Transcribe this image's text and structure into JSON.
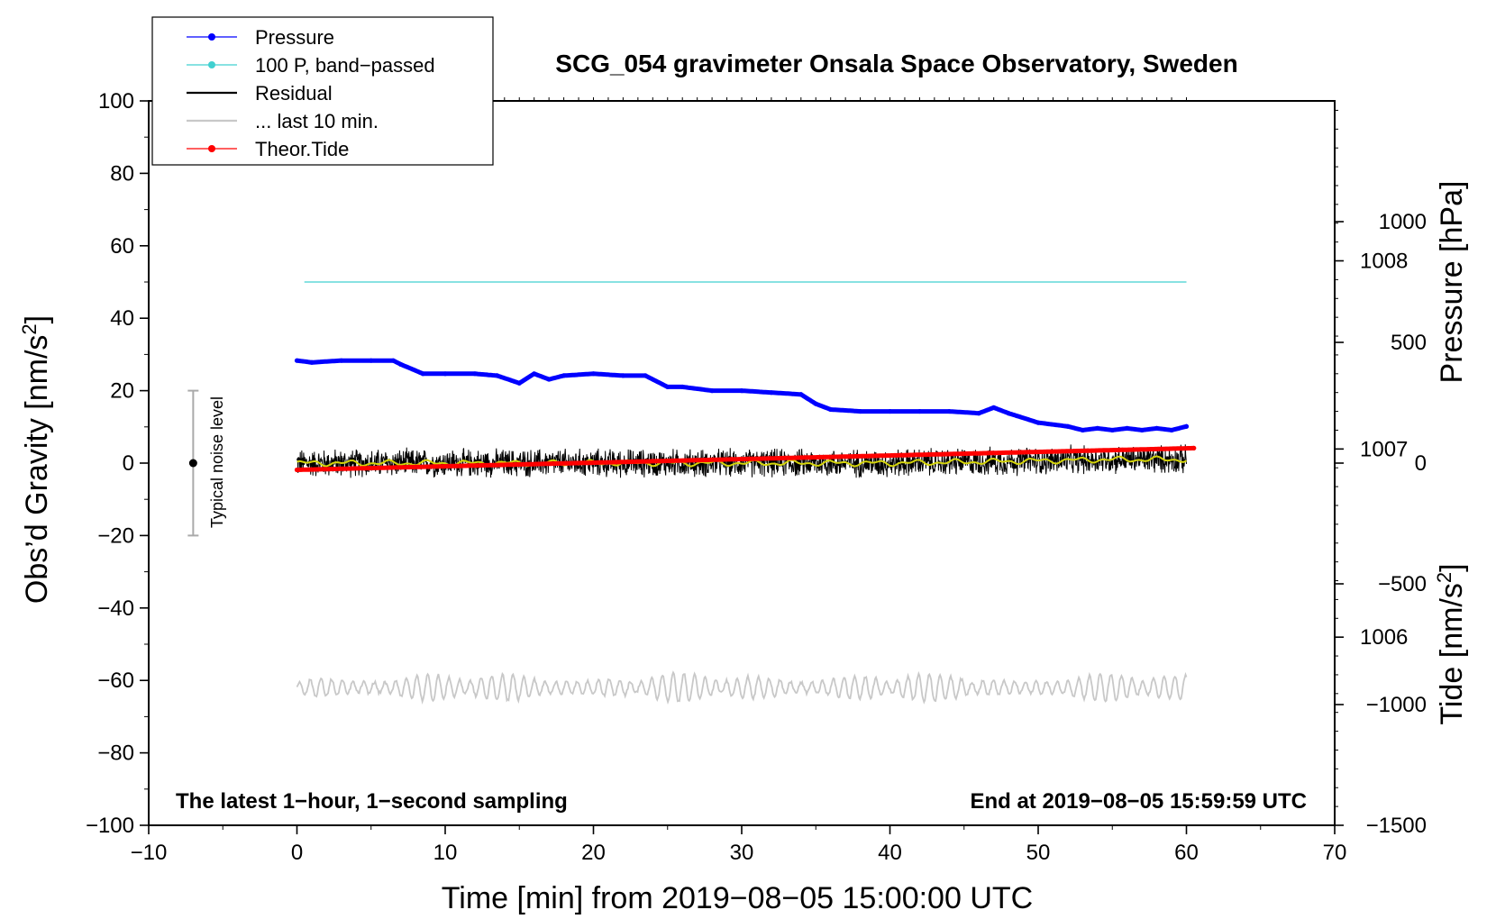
{
  "chart_data": {
    "type": "line",
    "title": "SCG_054 gravimeter Onsala Space Observatory, Sweden",
    "xlabel": "Time [min] from 2019−08−05 15:00:00 UTC",
    "ylabel": "Obs’d Gravity [nm/s",
    "ylabel_sup": "2",
    "ylabel_end": "]",
    "right_pressure_label": "Pressure [hPa]",
    "right_tide_label": "Tide [nm/s",
    "right_tide_sup": "2",
    "right_tide_end": "]",
    "note_left": "The latest 1−hour, 1−second sampling",
    "note_right": "End at 2019−08−05 15:59:59 UTC",
    "noise_label": "Typical noise level",
    "xlim": [
      -10,
      70
    ],
    "ylim": [
      -100,
      100
    ],
    "pressure_ylim": [
      1005.0,
      1008.85
    ],
    "tide_ylim": [
      -1500,
      1500
    ],
    "x_ticks": [
      {
        "v": -10,
        "t": "−10"
      },
      {
        "v": 0,
        "t": "0"
      },
      {
        "v": 10,
        "t": "10"
      },
      {
        "v": 20,
        "t": "20"
      },
      {
        "v": 30,
        "t": "30"
      },
      {
        "v": 40,
        "t": "40"
      },
      {
        "v": 50,
        "t": "50"
      },
      {
        "v": 60,
        "t": "60"
      },
      {
        "v": 70,
        "t": "70"
      }
    ],
    "y_ticks": [
      {
        "v": 100,
        "t": "100"
      },
      {
        "v": 80,
        "t": "80"
      },
      {
        "v": 60,
        "t": "60"
      },
      {
        "v": 40,
        "t": "40"
      },
      {
        "v": 20,
        "t": "20"
      },
      {
        "v": 0,
        "t": "0"
      },
      {
        "v": -20,
        "t": "−20"
      },
      {
        "v": -40,
        "t": "−40"
      },
      {
        "v": -60,
        "t": "−60"
      },
      {
        "v": -80,
        "t": "−80"
      },
      {
        "v": -100,
        "t": "−100"
      }
    ],
    "pressure_ticks": [
      {
        "v": 1008,
        "t": "1008"
      },
      {
        "v": 1007,
        "t": "1007"
      },
      {
        "v": 1006,
        "t": "1006"
      }
    ],
    "tide_ticks": [
      {
        "v": 1000,
        "t": "1000"
      },
      {
        "v": 500,
        "t": "500"
      },
      {
        "v": 0,
        "t": "0"
      },
      {
        "v": -500,
        "t": "−500"
      },
      {
        "v": -1000,
        "t": "−1000"
      },
      {
        "v": -1500,
        "t": "−1500"
      }
    ],
    "noise_bar": {
      "x": -7,
      "low": -20,
      "high": 20,
      "center": 0
    },
    "series": [
      {
        "name": "Pressure",
        "color": "#0000ff",
        "axis": "pressure",
        "style": "line-dots",
        "x": [
          0,
          1,
          3,
          5,
          6.5,
          7,
          8.5,
          10,
          12,
          13.5,
          15,
          16,
          17,
          18,
          20,
          22,
          23.5,
          25,
          26,
          28,
          30,
          32,
          34,
          35,
          36,
          38,
          40,
          42,
          44,
          46,
          47,
          48,
          50,
          52,
          53,
          54,
          55,
          56,
          57,
          58,
          59,
          60
        ],
        "values": [
          1007.47,
          1007.46,
          1007.47,
          1007.47,
          1007.47,
          1007.45,
          1007.4,
          1007.4,
          1007.4,
          1007.39,
          1007.35,
          1007.4,
          1007.37,
          1007.39,
          1007.4,
          1007.39,
          1007.39,
          1007.33,
          1007.33,
          1007.31,
          1007.31,
          1007.3,
          1007.29,
          1007.24,
          1007.21,
          1007.2,
          1007.2,
          1007.2,
          1007.2,
          1007.19,
          1007.22,
          1007.19,
          1007.14,
          1007.12,
          1007.1,
          1007.11,
          1007.1,
          1007.11,
          1007.1,
          1007.11,
          1007.1,
          1007.12
        ]
      },
      {
        "name": "100 P, band−passed",
        "color": "#40d0d0",
        "axis": "gravity",
        "style": "line",
        "x": [
          0.5,
          60
        ],
        "values": [
          50,
          50
        ]
      },
      {
        "name": "Residual",
        "color": "#000000",
        "axis": "gravity",
        "style": "noise",
        "x": [
          0,
          10,
          20,
          30,
          40,
          48,
          55,
          60
        ],
        "values": [
          0,
          0,
          0,
          0,
          0,
          0.5,
          1.0,
          1.0
        ],
        "noise_amplitude": 4.5
      },
      {
        "name": "... last 10 min.",
        "color": "#c8c8c8",
        "axis": "gravity",
        "style": "oscillation",
        "x": [
          0,
          60
        ],
        "values": [
          -62,
          -62
        ],
        "oscillation_amplitude": 4
      },
      {
        "name": "Theor.Tide",
        "color": "#ff0000",
        "axis": "tide",
        "style": "line-dots",
        "x": [
          0,
          60.5
        ],
        "values": [
          -28,
          62
        ]
      }
    ],
    "smoothed_residual_color": "#d4d40a",
    "legend": [
      {
        "label": "Pressure",
        "color": "#0000ff",
        "marker": true
      },
      {
        "label": "100 P, band−passed",
        "color": "#40d0d0",
        "marker": true
      },
      {
        "label": "Residual",
        "color": "#000000",
        "marker": false
      },
      {
        "label": "... last 10 min.",
        "color": "#c8c8c8",
        "marker": false
      },
      {
        "label": "Theor.Tide",
        "color": "#ff0000",
        "marker": true
      }
    ]
  }
}
